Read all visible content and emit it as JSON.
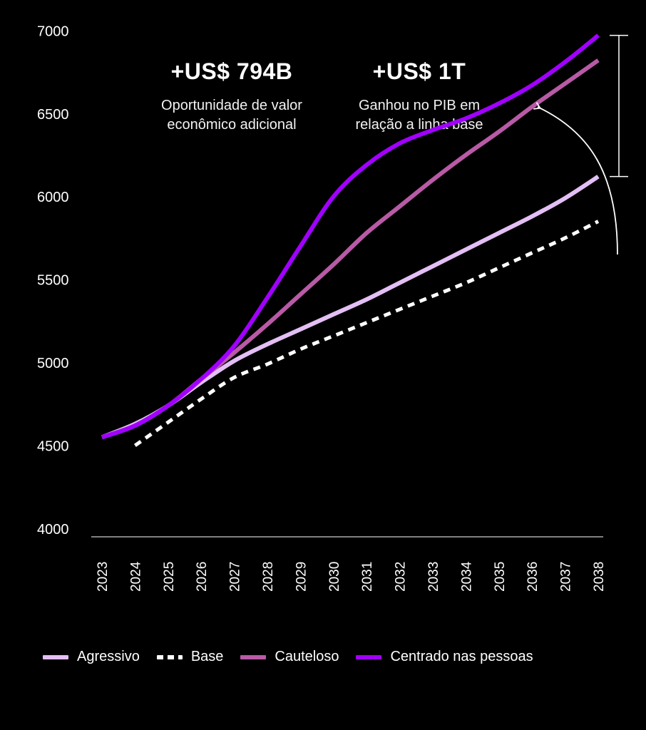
{
  "stats": [
    {
      "value": "+US$ 794B",
      "desc_line1": "Oportunidade de valor",
      "desc_line2": "econômico adicional"
    },
    {
      "value": "+US$ 1T",
      "desc_line1": "Ganhou no PIB em",
      "desc_line2": "relação a linha base"
    }
  ],
  "chart_data": {
    "type": "line",
    "categories": [
      "2023",
      "2024",
      "2025",
      "2026",
      "2027",
      "2028",
      "2029",
      "2030",
      "2031",
      "2032",
      "2033",
      "2034",
      "2035",
      "2036",
      "2037",
      "2038"
    ],
    "ylim": [
      4000,
      7500
    ],
    "yticks": [
      4000,
      4500,
      5000,
      5500,
      6000,
      6500,
      7000,
      7500
    ],
    "series": [
      {
        "name": "Agressivo",
        "color": "#e3bff5",
        "style": "solid",
        "values": [
          4600,
          4680,
          4790,
          4930,
          5060,
          5160,
          5250,
          5340,
          5430,
          5530,
          5630,
          5730,
          5830,
          5930,
          6040,
          6170
        ]
      },
      {
        "name": "Base",
        "color": "#ffffff",
        "style": "dashed",
        "values": [
          null,
          4550,
          4690,
          4830,
          4960,
          5040,
          5130,
          5210,
          5290,
          5370,
          5450,
          5530,
          5620,
          5710,
          5800,
          5900
        ]
      },
      {
        "name": "Cauteloso",
        "color": "#b85aa6",
        "style": "solid",
        "values": [
          4600,
          4670,
          4790,
          4950,
          5110,
          5280,
          5460,
          5640,
          5830,
          5990,
          6150,
          6300,
          6440,
          6590,
          6730,
          6870
        ]
      },
      {
        "name": "Centrado nas pessoas",
        "color": "#a100ff",
        "style": "solid",
        "values": [
          4600,
          4670,
          4790,
          4950,
          5150,
          5440,
          5750,
          6050,
          6240,
          6370,
          6450,
          6520,
          6610,
          6720,
          6860,
          7020
        ]
      }
    ],
    "annotation": {
      "from": 6170,
      "to": 7020,
      "arrow": true
    }
  }
}
